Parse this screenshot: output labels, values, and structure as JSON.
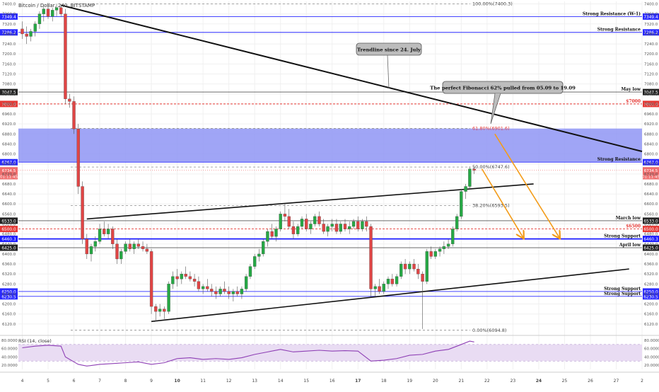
{
  "header": {
    "title": "Bitcoin / Dollar, 240, BITSTAMP"
  },
  "rsi": {
    "label": "RSI (14, close)",
    "ticks": [
      80,
      60,
      40,
      20
    ],
    "tick_labels": [
      "80.0000",
      "60.0000",
      "40.0000",
      "20.0000"
    ],
    "band": [
      30,
      70
    ]
  },
  "annotations": {
    "trendline_note": "Trendline since 24. July",
    "fib_note": "The perfect Fibonacci 62% pulled from 05.09 to 19.09"
  },
  "levels": [
    {
      "price": 7349.4,
      "tag": "7349.4",
      "label": "Strong Resistance (W-1)",
      "color": "#2a2aff",
      "style": "solid",
      "tag_bg": "#2a2aff"
    },
    {
      "price": 7286.2,
      "tag": "7286.2",
      "label": "Strong Resistance",
      "color": "#2a2aff",
      "style": "solid",
      "tag_bg": "#2a2aff"
    },
    {
      "price": 7047.5,
      "tag": "7047.5",
      "label": "May low",
      "color": "#555555",
      "style": "solid",
      "tag_bg": "#222222"
    },
    {
      "price": 7000,
      "tag": "7000.0",
      "label": "$7000",
      "color": "#e53935",
      "style": "dashed",
      "tag_bg": "#e53935"
    },
    {
      "price": 6767,
      "tag": "6767.0",
      "label": "Strong Resistance",
      "color": "#2a2aff",
      "style": "solid",
      "tag_bg": "#2a2aff"
    },
    {
      "price": 6533,
      "tag": "6533.0",
      "label": "March low",
      "color": "#555555",
      "style": "solid",
      "tag_bg": "#222222"
    },
    {
      "price": 6500,
      "tag": "6500.0",
      "label": "$6500",
      "color": "#e53935",
      "style": "dashed",
      "tag_bg": "#e53935"
    },
    {
      "price": 6460.3,
      "tag": "6460.3",
      "label": "Strong Support",
      "color": "#1a1aff",
      "style": "bold",
      "tag_bg": "#1a1aff"
    },
    {
      "price": 6425,
      "tag": "6425.0",
      "label": "April low",
      "color": "#555555",
      "style": "solid",
      "tag_bg": "#222222"
    },
    {
      "price": 6250,
      "tag": "6250.0",
      "label": "Strong Support",
      "color": "#2a2aff",
      "style": "solid",
      "tag_bg": "#2a2aff"
    },
    {
      "price": 6230.5,
      "tag": "6230.5",
      "label": "Strong Support",
      "color": "#2a2aff",
      "style": "solid",
      "tag_bg": "#2a2aff"
    }
  ],
  "price_tags": [
    {
      "price": 6734.5,
      "tag": "6734.5",
      "tag_bg": "#ef6c6c"
    },
    {
      "price": 6711,
      "tag": "01:11:45",
      "tag_bg": "#ef6c6c"
    }
  ],
  "fib_labels": [
    {
      "text": "100.00%(7400.3)",
      "price": 7400.3,
      "color": "#444444"
    },
    {
      "text": "61.80%(6901.6)",
      "price": 6901.6,
      "color": "#e53935"
    },
    {
      "text": "50.00%(6747.6)",
      "price": 6747.6,
      "color": "#444444"
    },
    {
      "text": "38.20%(6593.5)",
      "price": 6593.5,
      "color": "#444444"
    },
    {
      "text": "0.00%(6094.8)",
      "price": 6094.8,
      "color": "#444444"
    }
  ],
  "chart_data": {
    "type": "candlestick",
    "title": "Bitcoin / Dollar, 240, BITSTAMP",
    "y_range": [
      6080,
      7410
    ],
    "y_ticks": [
      7400,
      7360,
      7320,
      7280,
      7240,
      7200,
      7160,
      7120,
      7080,
      7040,
      7000,
      6960,
      6920,
      6880,
      6840,
      6800,
      6760,
      6720,
      6680,
      6640,
      6600,
      6560,
      6520,
      6480,
      6440,
      6400,
      6360,
      6320,
      6280,
      6240,
      6200,
      6160,
      6120
    ],
    "x_ticks": [
      {
        "label": "4",
        "day": 4
      },
      {
        "label": "5",
        "day": 5
      },
      {
        "label": "6",
        "day": 6
      },
      {
        "label": "7",
        "day": 7
      },
      {
        "label": "8",
        "day": 8
      },
      {
        "label": "9",
        "day": 9
      },
      {
        "label": "10",
        "day": 10
      },
      {
        "label": "11",
        "day": 11
      },
      {
        "label": "12",
        "day": 12
      },
      {
        "label": "13",
        "day": 13
      },
      {
        "label": "14",
        "day": 14
      },
      {
        "label": "15",
        "day": 15
      },
      {
        "label": "16",
        "day": 16
      },
      {
        "label": "17",
        "day": 17
      },
      {
        "label": "18",
        "day": 18
      },
      {
        "label": "19",
        "day": 19
      },
      {
        "label": "20",
        "day": 20
      },
      {
        "label": "21",
        "day": 21
      },
      {
        "label": "22",
        "day": 22
      },
      {
        "label": "23",
        "day": 23
      },
      {
        "label": "24",
        "day": 24
      },
      {
        "label": "25",
        "day": 25
      },
      {
        "label": "26",
        "day": 26
      },
      {
        "label": "27",
        "day": 27
      },
      {
        "label": "2",
        "day": 28
      }
    ],
    "x_range": [
      3.85,
      28.0
    ],
    "bold_x_ticks": [
      "10",
      "17",
      "24"
    ],
    "candles": [
      [
        4.0,
        7300,
        7330,
        7260,
        7280
      ],
      [
        4.17,
        7280,
        7310,
        7240,
        7270
      ],
      [
        4.33,
        7270,
        7300,
        7250,
        7290
      ],
      [
        4.5,
        7290,
        7330,
        7270,
        7320
      ],
      [
        4.67,
        7320,
        7370,
        7300,
        7360
      ],
      [
        4.83,
        7360,
        7390,
        7330,
        7380
      ],
      [
        5.0,
        7380,
        7400,
        7340,
        7350
      ],
      [
        5.17,
        7350,
        7385,
        7330,
        7375
      ],
      [
        5.33,
        7375,
        7400,
        7350,
        7385
      ],
      [
        5.5,
        7385,
        7395,
        7350,
        7360
      ],
      [
        5.67,
        7360,
        7380,
        7000,
        7020
      ],
      [
        5.83,
        7020,
        7040,
        6985,
        7010
      ],
      [
        6.0,
        7010,
        7030,
        6880,
        6900
      ],
      [
        6.17,
        6900,
        6920,
        6640,
        6670
      ],
      [
        6.33,
        6670,
        6690,
        6440,
        6460
      ],
      [
        6.5,
        6460,
        6480,
        6380,
        6400
      ],
      [
        6.67,
        6400,
        6440,
        6370,
        6430
      ],
      [
        6.83,
        6430,
        6470,
        6410,
        6450
      ],
      [
        7.0,
        6450,
        6520,
        6440,
        6500
      ],
      [
        7.17,
        6500,
        6530,
        6470,
        6480
      ],
      [
        7.33,
        6480,
        6520,
        6460,
        6500
      ],
      [
        7.5,
        6500,
        6510,
        6420,
        6440
      ],
      [
        7.67,
        6440,
        6460,
        6360,
        6380
      ],
      [
        7.83,
        6380,
        6420,
        6360,
        6410
      ],
      [
        8.0,
        6410,
        6450,
        6400,
        6440
      ],
      [
        8.17,
        6440,
        6460,
        6410,
        6420
      ],
      [
        8.33,
        6420,
        6450,
        6400,
        6440
      ],
      [
        8.5,
        6440,
        6460,
        6420,
        6430
      ],
      [
        8.67,
        6430,
        6450,
        6410,
        6420
      ],
      [
        8.83,
        6420,
        6440,
        6400,
        6410
      ],
      [
        9.0,
        6410,
        6420,
        6160,
        6190
      ],
      [
        9.17,
        6190,
        6200,
        6130,
        6170
      ],
      [
        9.33,
        6170,
        6200,
        6150,
        6180
      ],
      [
        9.5,
        6180,
        6190,
        6140,
        6170
      ],
      [
        9.67,
        6170,
        6290,
        6160,
        6280
      ],
      [
        9.83,
        6280,
        6330,
        6260,
        6310
      ],
      [
        10.0,
        6310,
        6340,
        6270,
        6300
      ],
      [
        10.17,
        6300,
        6330,
        6280,
        6320
      ],
      [
        10.33,
        6320,
        6350,
        6300,
        6310
      ],
      [
        10.5,
        6310,
        6330,
        6290,
        6300
      ],
      [
        10.67,
        6300,
        6320,
        6270,
        6290
      ],
      [
        10.83,
        6290,
        6310,
        6250,
        6260
      ],
      [
        11.0,
        6260,
        6280,
        6240,
        6270
      ],
      [
        11.17,
        6270,
        6300,
        6250,
        6260
      ],
      [
        11.33,
        6260,
        6280,
        6230,
        6250
      ],
      [
        11.5,
        6250,
        6270,
        6220,
        6240
      ],
      [
        11.67,
        6240,
        6270,
        6230,
        6260
      ],
      [
        11.83,
        6260,
        6290,
        6240,
        6250
      ],
      [
        12.0,
        6250,
        6270,
        6220,
        6240
      ],
      [
        12.17,
        6240,
        6260,
        6210,
        6250
      ],
      [
        12.33,
        6250,
        6270,
        6230,
        6240
      ],
      [
        12.5,
        6240,
        6270,
        6220,
        6260
      ],
      [
        12.67,
        6260,
        6320,
        6250,
        6310
      ],
      [
        12.83,
        6310,
        6360,
        6300,
        6350
      ],
      [
        13.0,
        6350,
        6400,
        6340,
        6390
      ],
      [
        13.17,
        6390,
        6420,
        6370,
        6400
      ],
      [
        13.33,
        6400,
        6460,
        6390,
        6450
      ],
      [
        13.5,
        6450,
        6500,
        6430,
        6490
      ],
      [
        13.67,
        6490,
        6520,
        6460,
        6470
      ],
      [
        13.83,
        6470,
        6510,
        6450,
        6500
      ],
      [
        14.0,
        6500,
        6570,
        6490,
        6560
      ],
      [
        14.17,
        6560,
        6600,
        6530,
        6550
      ],
      [
        14.33,
        6550,
        6580,
        6500,
        6510
      ],
      [
        14.5,
        6510,
        6530,
        6460,
        6480
      ],
      [
        14.67,
        6480,
        6520,
        6470,
        6510
      ],
      [
        14.83,
        6510,
        6550,
        6500,
        6540
      ],
      [
        15.0,
        6540,
        6560,
        6490,
        6500
      ],
      [
        15.17,
        6500,
        6530,
        6480,
        6520
      ],
      [
        15.33,
        6520,
        6560,
        6510,
        6550
      ],
      [
        15.5,
        6550,
        6570,
        6510,
        6520
      ],
      [
        15.67,
        6520,
        6540,
        6480,
        6490
      ],
      [
        15.83,
        6490,
        6520,
        6470,
        6510
      ],
      [
        16.0,
        6510,
        6540,
        6490,
        6520
      ],
      [
        16.17,
        6520,
        6540,
        6480,
        6490
      ],
      [
        16.33,
        6490,
        6530,
        6480,
        6520
      ],
      [
        16.5,
        6520,
        6540,
        6490,
        6500
      ],
      [
        16.67,
        6500,
        6530,
        6480,
        6510
      ],
      [
        16.83,
        6510,
        6540,
        6500,
        6530
      ],
      [
        17.0,
        6530,
        6550,
        6490,
        6500
      ],
      [
        17.17,
        6500,
        6540,
        6490,
        6530
      ],
      [
        17.33,
        6530,
        6550,
        6490,
        6510
      ],
      [
        17.5,
        6510,
        6520,
        6230,
        6260
      ],
      [
        17.67,
        6260,
        6280,
        6230,
        6270
      ],
      [
        17.83,
        6270,
        6300,
        6240,
        6250
      ],
      [
        18.0,
        6250,
        6290,
        6240,
        6280
      ],
      [
        18.17,
        6280,
        6310,
        6260,
        6300
      ],
      [
        18.33,
        6300,
        6320,
        6270,
        6280
      ],
      [
        18.5,
        6280,
        6320,
        6270,
        6310
      ],
      [
        18.67,
        6310,
        6370,
        6300,
        6360
      ],
      [
        18.83,
        6360,
        6380,
        6320,
        6340
      ],
      [
        19.0,
        6340,
        6370,
        6320,
        6360
      ],
      [
        19.17,
        6360,
        6380,
        6330,
        6340
      ],
      [
        19.33,
        6340,
        6360,
        6300,
        6320
      ],
      [
        19.5,
        6320,
        6330,
        6100,
        6290
      ],
      [
        19.67,
        6290,
        6420,
        6280,
        6410
      ],
      [
        19.83,
        6410,
        6430,
        6380,
        6390
      ],
      [
        20.0,
        6390,
        6420,
        6380,
        6410
      ],
      [
        20.17,
        6410,
        6430,
        6390,
        6420
      ],
      [
        20.33,
        6420,
        6450,
        6400,
        6430
      ],
      [
        20.5,
        6430,
        6460,
        6420,
        6440
      ],
      [
        20.67,
        6440,
        6510,
        6430,
        6500
      ],
      [
        20.83,
        6500,
        6560,
        6490,
        6550
      ],
      [
        21.0,
        6550,
        6660,
        6540,
        6650
      ],
      [
        21.17,
        6650,
        6680,
        6620,
        6670
      ],
      [
        21.33,
        6670,
        6750,
        6660,
        6740
      ],
      [
        21.5,
        6740,
        6750,
        6720,
        6734.5
      ]
    ],
    "rsi": [
      [
        4.0,
        62
      ],
      [
        4.5,
        66
      ],
      [
        5.0,
        68
      ],
      [
        5.5,
        66
      ],
      [
        5.67,
        40
      ],
      [
        6.0,
        28
      ],
      [
        6.17,
        22
      ],
      [
        6.5,
        18
      ],
      [
        7.0,
        22
      ],
      [
        7.5,
        24
      ],
      [
        8.0,
        26
      ],
      [
        8.5,
        28
      ],
      [
        9.0,
        22
      ],
      [
        9.5,
        26
      ],
      [
        10.0,
        36
      ],
      [
        10.5,
        38
      ],
      [
        11.0,
        34
      ],
      [
        11.5,
        36
      ],
      [
        12.0,
        34
      ],
      [
        12.5,
        38
      ],
      [
        13.0,
        46
      ],
      [
        13.5,
        52
      ],
      [
        14.0,
        58
      ],
      [
        14.5,
        52
      ],
      [
        15.0,
        54
      ],
      [
        15.5,
        56
      ],
      [
        16.0,
        54
      ],
      [
        16.5,
        55
      ],
      [
        17.0,
        54
      ],
      [
        17.5,
        30
      ],
      [
        18.0,
        32
      ],
      [
        18.5,
        36
      ],
      [
        19.0,
        44
      ],
      [
        19.5,
        46
      ],
      [
        20.0,
        54
      ],
      [
        20.5,
        58
      ],
      [
        21.0,
        70
      ],
      [
        21.33,
        78
      ],
      [
        21.5,
        76
      ]
    ],
    "trendlines": [
      {
        "name": "trendline-since-24-july",
        "from": [
          5.5,
          7395
        ],
        "to": [
          28.0,
          6810
        ],
        "color": "#111111",
        "width": 2
      },
      {
        "name": "channel-upper",
        "from": [
          6.5,
          6540
        ],
        "to": [
          23.8,
          6680
        ],
        "color": "#111111",
        "width": 1.6
      },
      {
        "name": "channel-lower",
        "from": [
          9.0,
          6130
        ],
        "to": [
          27.5,
          6340
        ],
        "color": "#111111",
        "width": 1.6
      }
    ],
    "fib_zone": {
      "from": 6901.6,
      "to": 6767
    },
    "projection_arrows": [
      {
        "from": [
          21.8,
          6740
        ],
        "to": [
          23.4,
          6465
        ]
      },
      {
        "from": [
          22.3,
          6880
        ],
        "to": [
          24.8,
          6465
        ]
      }
    ]
  }
}
